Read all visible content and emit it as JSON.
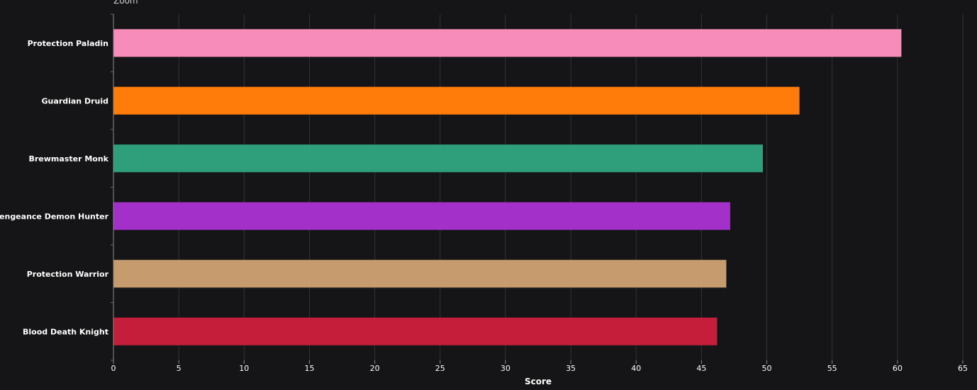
{
  "toolbar": {
    "zoom_label": "Zoom"
  },
  "chart_data": {
    "type": "bar",
    "orientation": "horizontal",
    "categories": [
      "Protection Paladin",
      "Guardian Druid",
      "Brewmaster Monk",
      "Vengeance Demon Hunter",
      "Protection Warrior",
      "Blood Death Knight"
    ],
    "values": [
      60.3,
      52.5,
      49.7,
      47.2,
      46.9,
      46.2
    ],
    "colors": [
      "#f78cba",
      "#ff7c0a",
      "#2e9e7b",
      "#a330c9",
      "#c69b6d",
      "#c41e3a"
    ],
    "xlabel": "Score",
    "ylabel": "",
    "xlim": [
      0,
      65
    ],
    "xticks": [
      0,
      5,
      10,
      15,
      20,
      25,
      30,
      35,
      40,
      45,
      50,
      55,
      60,
      65
    ],
    "grid": true,
    "background": "#151517"
  }
}
